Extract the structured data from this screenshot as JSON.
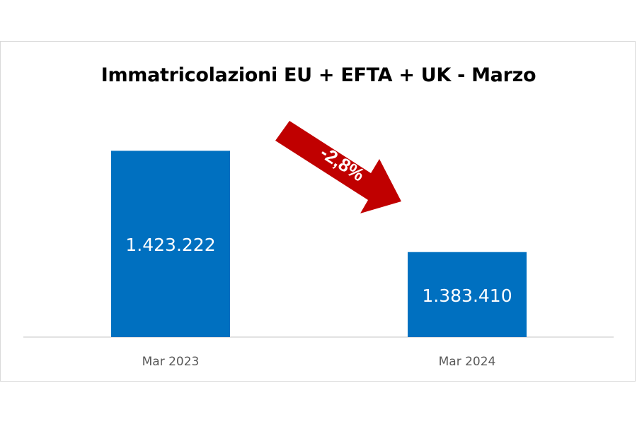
{
  "chart_data": {
    "type": "bar",
    "title": "Immatricolazioni EU + EFTA + UK - Marzo",
    "xlabel": "",
    "ylabel": "",
    "categories": [
      "Mar 2023",
      "Mar 2024"
    ],
    "values": [
      1423222,
      1383410
    ],
    "data_labels": [
      "1.423.222",
      "1.383.410"
    ],
    "annotation": "-2,8%",
    "ylim": [
      1350000,
      1430000
    ],
    "grid": false,
    "legend": "none"
  },
  "colors": {
    "bar": "#0070c0",
    "arrow": "#c00000",
    "axis": "#d9d9d9",
    "tick_text": "#595959"
  }
}
